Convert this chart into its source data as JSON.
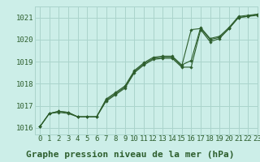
{
  "title": "Graphe pression niveau de la mer (hPa)",
  "bg_color": "#cceee8",
  "grid_color": "#aad4cc",
  "line_color": "#2d5e2d",
  "marker_color": "#2d5e2d",
  "xlim": [
    -0.5,
    23
  ],
  "ylim": [
    1015.7,
    1021.5
  ],
  "yticks": [
    1016,
    1017,
    1018,
    1019,
    1020,
    1021
  ],
  "xticks": [
    0,
    1,
    2,
    3,
    4,
    5,
    6,
    7,
    8,
    9,
    10,
    11,
    12,
    13,
    14,
    15,
    16,
    17,
    18,
    19,
    20,
    21,
    22,
    23
  ],
  "series_main": [
    1016.05,
    1016.65,
    1016.7,
    1016.65,
    1016.5,
    1016.5,
    1016.5,
    1017.2,
    1017.5,
    1017.8,
    1018.5,
    1018.85,
    1019.1,
    1019.15,
    1019.15,
    1018.75,
    1018.75,
    1020.45,
    1019.9,
    1020.05,
    1020.5,
    1021.0,
    1021.05,
    1021.1
  ],
  "series_upper1": [
    1016.05,
    1016.65,
    1016.75,
    1016.7,
    1016.5,
    1016.5,
    1016.5,
    1017.25,
    1017.55,
    1017.85,
    1018.55,
    1018.9,
    1019.15,
    1019.2,
    1019.2,
    1018.8,
    1020.45,
    1020.5,
    1020.0,
    1020.1,
    1020.5,
    1021.0,
    1021.05,
    1021.15
  ],
  "series_upper2": [
    1016.05,
    1016.65,
    1016.75,
    1016.7,
    1016.5,
    1016.5,
    1016.5,
    1017.3,
    1017.6,
    1017.9,
    1018.6,
    1018.95,
    1019.2,
    1019.25,
    1019.25,
    1018.85,
    1019.05,
    1020.55,
    1020.05,
    1020.15,
    1020.55,
    1021.05,
    1021.1,
    1021.15
  ],
  "tick_fontsize": 6.5,
  "title_fontsize": 8
}
